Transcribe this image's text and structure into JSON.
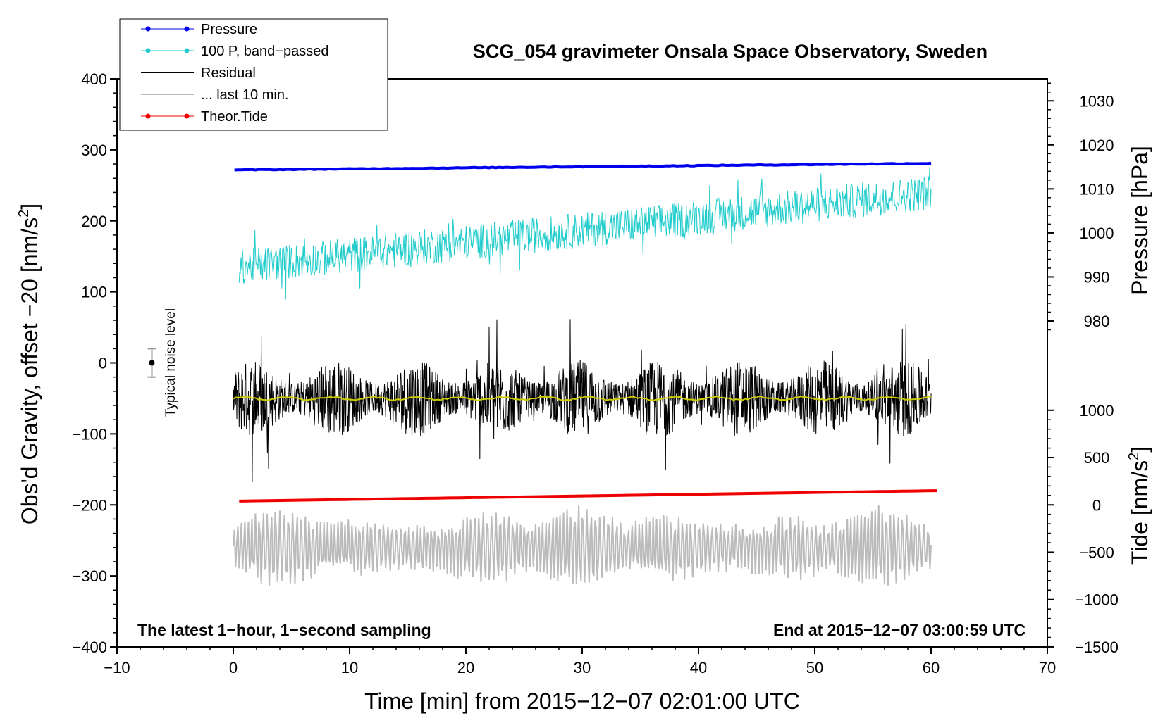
{
  "chart_data": {
    "type": "line",
    "title": "SCG_054 gravimeter Onsala Space Observatory, Sweden",
    "xlabel": "Time [min] from 2015−12−07 02:01:00 UTC",
    "ylabel_left": "Obs'd Gravity, offset −20 [nm/s",
    "ylabel_left_sup": "2",
    "ylabel_left_end": "]",
    "ylabel_right_pressure": "Pressure [hPa]",
    "ylabel_right_tide": "Tide [nm/s",
    "ylabel_right_tide_sup": "2",
    "ylabel_right_tide_end": "]",
    "xlim": [
      -10,
      70
    ],
    "ylim_left": [
      -400,
      400
    ],
    "x_ticks": [
      {
        "value": -10,
        "label": "−10"
      },
      {
        "value": 0,
        "label": "0"
      },
      {
        "value": 10,
        "label": "10"
      },
      {
        "value": 20,
        "label": "20"
      },
      {
        "value": 30,
        "label": "30"
      },
      {
        "value": 40,
        "label": "40"
      },
      {
        "value": 50,
        "label": "50"
      },
      {
        "value": 60,
        "label": "60"
      },
      {
        "value": 70,
        "label": "70"
      }
    ],
    "y_left_ticks": [
      {
        "value": 400,
        "label": "400"
      },
      {
        "value": 300,
        "label": "300"
      },
      {
        "value": 200,
        "label": "200"
      },
      {
        "value": 100,
        "label": "100"
      },
      {
        "value": 0,
        "label": "0"
      },
      {
        "value": -100,
        "label": "−100"
      },
      {
        "value": -200,
        "label": "−200"
      },
      {
        "value": -300,
        "label": "−300"
      },
      {
        "value": -400,
        "label": "−400"
      }
    ],
    "pressure_axis": {
      "gravity_at_1000_hPa": 183,
      "gravity_per_hPa": 6.2,
      "ticks": [
        {
          "value": 1030,
          "label": "1030"
        },
        {
          "value": 1020,
          "label": "1020"
        },
        {
          "value": 1010,
          "label": "1010"
        },
        {
          "value": 1000,
          "label": "1000"
        },
        {
          "value": 990,
          "label": "990"
        },
        {
          "value": 980,
          "label": "980"
        }
      ]
    },
    "tide_axis": {
      "gravity_at_zero": -200,
      "gravity_per_unit": 0.1333,
      "ticks": [
        {
          "value": 1000,
          "label": "1000"
        },
        {
          "value": 500,
          "label": "500"
        },
        {
          "value": 0,
          "label": "0"
        },
        {
          "value": -500,
          "label": "−500"
        },
        {
          "value": -1000,
          "label": "−1000"
        },
        {
          "value": -1500,
          "label": "−1500"
        }
      ]
    },
    "legend": [
      {
        "label": "Pressure",
        "color": "#0000ee",
        "marker": true
      },
      {
        "label": "100 P, band−passed",
        "color": "#22cccc",
        "marker": true
      },
      {
        "label": "Residual",
        "color": "#000000",
        "marker": false
      },
      {
        "label": "... last 10 min.",
        "color": "#bbbbbb",
        "marker": false
      },
      {
        "label": "Theor.Tide",
        "color": "#ee0000",
        "marker": true
      }
    ],
    "annotations": {
      "bottom_left": "The latest 1−hour, 1−second sampling",
      "bottom_right": "End at 2015−12−07 03:00:59 UTC",
      "noise_label": "Typical noise level"
    },
    "noise_bar": {
      "x": -7,
      "center": 0,
      "half_range": 20
    },
    "series": [
      {
        "name": "Pressure",
        "color": "#0000ee",
        "unit": "hPa",
        "x_start": 0.1,
        "x_end": 60,
        "start": 1014.3,
        "end": 1015.8
      },
      {
        "name": "100 P, band−passed",
        "color": "#22cccc",
        "unit": "nm/s2",
        "x_start": 0.5,
        "x_end": 60,
        "start": 135,
        "end": 240,
        "amplitude": 25
      },
      {
        "name": "Residual",
        "color": "#000000",
        "unit": "nm/s2",
        "x_start": 0,
        "x_end": 60,
        "mean": -50,
        "amplitude": 55
      },
      {
        "name": "Residual smoothed",
        "color": "#cccc00",
        "unit": "nm/s2",
        "x_start": 0,
        "x_end": 60,
        "mean": -50
      },
      {
        "name": "... last 10 min.",
        "color": "#bbbbbb",
        "unit": "nm/s2",
        "x_start": 0,
        "x_end": 60,
        "mean": -260,
        "amplitude": 55
      },
      {
        "name": "Theor.Tide",
        "color": "#ee0000",
        "unit": "nm/s2",
        "x_start": 0.5,
        "x_end": 60.5,
        "start": 40,
        "end": 150
      }
    ]
  }
}
